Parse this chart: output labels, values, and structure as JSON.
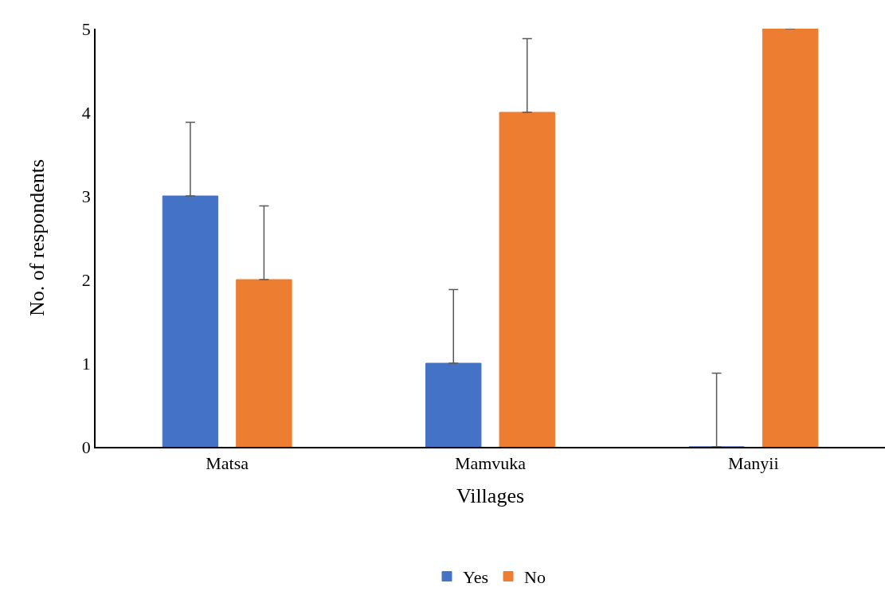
{
  "chart_data": {
    "type": "bar",
    "xlabel": "Villages",
    "ylabel": "No. of respondents",
    "categories": [
      "Matsa",
      "Mamvuka",
      "Manyii"
    ],
    "series": [
      {
        "name": "Yes",
        "color": "#4472c4",
        "values": [
          3,
          1,
          0
        ],
        "errors": [
          [
            3,
            3.88
          ],
          [
            1,
            1.88
          ],
          [
            0,
            0.88
          ]
        ]
      },
      {
        "name": "No",
        "color": "#ed7d31",
        "values": [
          2,
          4,
          5
        ],
        "errors": [
          [
            2,
            2.88
          ],
          [
            4,
            4.88
          ],
          null
        ]
      }
    ],
    "ylim": [
      0,
      5
    ],
    "yticks": [
      0,
      1,
      2,
      3,
      4,
      5
    ],
    "grid": false,
    "legend": "bottom"
  }
}
